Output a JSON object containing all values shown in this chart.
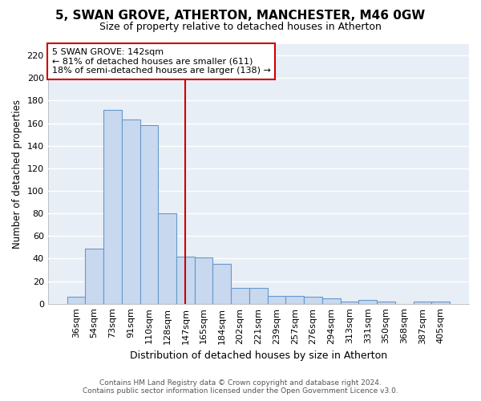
{
  "title": "5, SWAN GROVE, ATHERTON, MANCHESTER, M46 0GW",
  "subtitle": "Size of property relative to detached houses in Atherton",
  "xlabel": "Distribution of detached houses by size in Atherton",
  "ylabel": "Number of detached properties",
  "categories": [
    "36sqm",
    "54sqm",
    "73sqm",
    "91sqm",
    "110sqm",
    "128sqm",
    "147sqm",
    "165sqm",
    "184sqm",
    "202sqm",
    "221sqm",
    "239sqm",
    "257sqm",
    "276sqm",
    "294sqm",
    "313sqm",
    "331sqm",
    "350sqm",
    "368sqm",
    "387sqm",
    "405sqm"
  ],
  "values": [
    6,
    49,
    172,
    163,
    158,
    80,
    42,
    41,
    35,
    14,
    14,
    7,
    7,
    6,
    5,
    2,
    3,
    2,
    0,
    2,
    2
  ],
  "bar_color": "#c8d8ee",
  "bar_edge_color": "#6699cc",
  "ylim": [
    0,
    230
  ],
  "yticks": [
    0,
    20,
    40,
    60,
    80,
    100,
    120,
    140,
    160,
    180,
    200,
    220
  ],
  "vline_x": 6,
  "vline_color": "#cc0000",
  "annotation_line1": "5 SWAN GROVE: 142sqm",
  "annotation_line2": "← 81% of detached houses are smaller (611)",
  "annotation_line3": "18% of semi-detached houses are larger (138) →",
  "annotation_box_color": "#ffffff",
  "annotation_box_edge": "#cc0000",
  "plot_bg_color": "#e8eef6",
  "background_color": "#ffffff",
  "grid_color": "#ffffff",
  "footer_line1": "Contains HM Land Registry data © Crown copyright and database right 2024.",
  "footer_line2": "Contains public sector information licensed under the Open Government Licence v3.0."
}
